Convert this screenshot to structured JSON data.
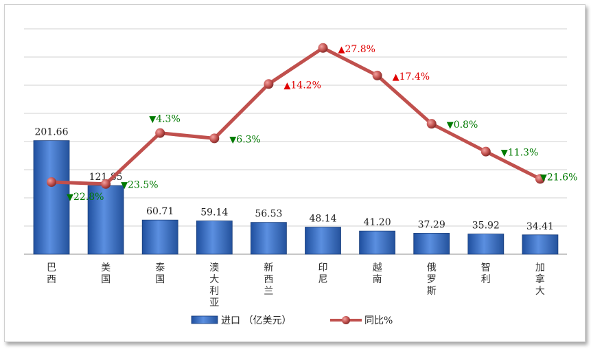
{
  "chart_data": {
    "type": "bar+line",
    "categories": [
      "巴西",
      "美国",
      "泰国",
      "澳大利亚",
      "新西兰",
      "印尼",
      "越南",
      "俄罗斯",
      "智利",
      "加拿大"
    ],
    "series": [
      {
        "name": "进口（亿美元）",
        "type": "bar",
        "color": "#3a6fc4",
        "values": [
          201.66,
          121.85,
          60.71,
          59.14,
          56.53,
          48.14,
          41.2,
          37.29,
          35.92,
          34.41
        ],
        "labels": [
          "201.66",
          "121.85",
          "60.71",
          "59.14",
          "56.53",
          "48.14",
          "41.20",
          "37.29",
          "35.92",
          "34.41"
        ]
      },
      {
        "name": "同比%",
        "type": "line",
        "color": "#c0504d",
        "values": [
          -22.8,
          -23.5,
          -4.3,
          -6.3,
          14.2,
          27.8,
          17.4,
          -0.8,
          -11.3,
          -21.6
        ],
        "labels": [
          "22.8%",
          "23.5%",
          "4.3%",
          "6.3%",
          "14.2%",
          "27.8%",
          "17.4%",
          "0.8%",
          "11.3%",
          "21.6%"
        ]
      }
    ],
    "bar_ylim": [
      0,
      400
    ],
    "line_ylim": [
      -50,
      35
    ],
    "grid": true,
    "legend": "bottom",
    "colors": {
      "up": "#e00000",
      "down": "#007a00"
    }
  },
  "legend": {
    "bar_label": "进口 （亿美元）",
    "line_label": "同比%"
  },
  "markers": {
    "up": "▲",
    "down": "▼"
  }
}
